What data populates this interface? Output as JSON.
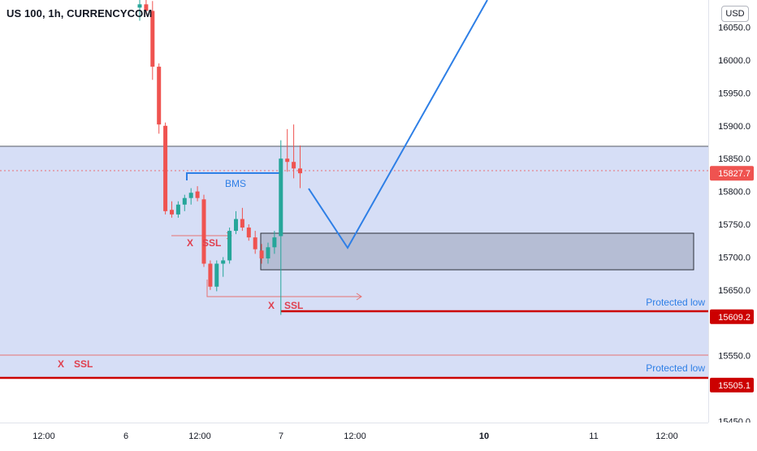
{
  "title": "US 100, 1h, CURRENCYCOM",
  "currency": "USD",
  "colors": {
    "up": "#26a69a",
    "down": "#ef5350",
    "zone_fill": "#cfd8f5",
    "box_fill": "#a9b1c8",
    "projection": "#2e7fe6",
    "ssl_line": "#cc0000",
    "annotation_red": "#e0404f"
  },
  "chart_data": {
    "type": "candlestick",
    "title": "US 100, 1h, CURRENCYCOM",
    "y_axis": {
      "ticks": [
        "16050.0",
        "16000.0",
        "15950.0",
        "15900.0",
        "15850.0",
        "15800.0",
        "15750.0",
        "15700.0",
        "15650.0",
        "15550.0",
        "15500.0",
        "15450.0"
      ],
      "range": [
        15430,
        16095
      ]
    },
    "x_axis": {
      "ticks": [
        "12:00",
        "6",
        "12:00",
        "7",
        "12:00",
        "10",
        "11",
        "12:00"
      ],
      "bold_ticks": [
        "10"
      ]
    },
    "price_labels": [
      {
        "value": "15827.7",
        "price": 15827.7,
        "kind": "current"
      },
      {
        "value": "15609.2",
        "price": 15609.2,
        "kind": "level"
      },
      {
        "value": "15505.1",
        "price": 15505.1,
        "kind": "level"
      }
    ],
    "candles": [
      {
        "o": 16080,
        "h": 16095,
        "l": 16060,
        "c": 16085
      },
      {
        "o": 16085,
        "h": 16095,
        "l": 16070,
        "c": 16075
      },
      {
        "o": 16075,
        "h": 16090,
        "l": 15970,
        "c": 15990
      },
      {
        "o": 15990,
        "h": 15995,
        "l": 15888,
        "c": 15902
      },
      {
        "o": 15900,
        "h": 15905,
        "l": 15765,
        "c": 15770
      },
      {
        "o": 15772,
        "h": 15785,
        "l": 15760,
        "c": 15765
      },
      {
        "o": 15765,
        "h": 15785,
        "l": 15760,
        "c": 15780
      },
      {
        "o": 15780,
        "h": 15795,
        "l": 15770,
        "c": 15790
      },
      {
        "o": 15790,
        "h": 15805,
        "l": 15780,
        "c": 15798
      },
      {
        "o": 15800,
        "h": 15808,
        "l": 15785,
        "c": 15790
      },
      {
        "o": 15788,
        "h": 15795,
        "l": 15685,
        "c": 15690
      },
      {
        "o": 15690,
        "h": 15695,
        "l": 15650,
        "c": 15655
      },
      {
        "o": 15655,
        "h": 15695,
        "l": 15648,
        "c": 15690
      },
      {
        "o": 15690,
        "h": 15700,
        "l": 15670,
        "c": 15695
      },
      {
        "o": 15695,
        "h": 15745,
        "l": 15690,
        "c": 15740
      },
      {
        "o": 15740,
        "h": 15770,
        "l": 15735,
        "c": 15758
      },
      {
        "o": 15758,
        "h": 15775,
        "l": 15740,
        "c": 15745
      },
      {
        "o": 15745,
        "h": 15750,
        "l": 15725,
        "c": 15730
      },
      {
        "o": 15730,
        "h": 15740,
        "l": 15705,
        "c": 15712
      },
      {
        "o": 15710,
        "h": 15720,
        "l": 15690,
        "c": 15698
      },
      {
        "o": 15698,
        "h": 15722,
        "l": 15690,
        "c": 15715
      },
      {
        "o": 15715,
        "h": 15740,
        "l": 15705,
        "c": 15730
      },
      {
        "o": 15732,
        "h": 15878,
        "l": 15612,
        "c": 15850
      },
      {
        "o": 15850,
        "h": 15895,
        "l": 15830,
        "c": 15845
      },
      {
        "o": 15845,
        "h": 15902,
        "l": 15820,
        "c": 15835
      },
      {
        "o": 15835,
        "h": 15870,
        "l": 15805,
        "c": 15827.7
      }
    ],
    "annotations": {
      "bms_label": "BMS",
      "ssl_labels": [
        "SSL",
        "SSL",
        "SSL"
      ],
      "x_marks": [
        "X",
        "X",
        "X"
      ],
      "protected_low_labels": [
        "Protected low",
        "Protected low"
      ]
    }
  }
}
